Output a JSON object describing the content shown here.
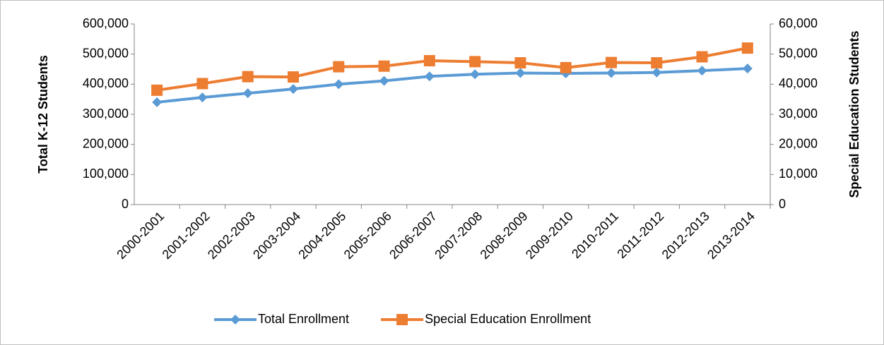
{
  "chart_data": {
    "type": "line",
    "y_label": "Total K-12 Students",
    "y2_label": "Special Education Students",
    "categories": [
      "2000-2001",
      "2001-2002",
      "2002-2003",
      "2003-2004",
      "2004-2005",
      "2005-2006",
      "2006-2007",
      "2007-2008",
      "2008-2009",
      "2009-2010",
      "2010-2011",
      "2011-2012",
      "2012-2013",
      "2013-2014"
    ],
    "series": [
      {
        "name": "Total Enrollment",
        "color": "#5b9bd5",
        "marker": "diamond",
        "values": [
          340000,
          356000,
          370000,
          384000,
          400000,
          411000,
          426000,
          433000,
          437000,
          436000,
          437000,
          439000,
          445000,
          452000
        ]
      },
      {
        "name": "Special Education Enrollment",
        "color": "#ed7d31",
        "marker": "square",
        "axis": "y2",
        "values": [
          38000,
          40200,
          42500,
          42400,
          45800,
          46000,
          47800,
          47500,
          47100,
          45500,
          47200,
          47100,
          49100,
          52000
        ]
      }
    ],
    "ylim": [
      0,
      600000
    ],
    "yticks": [
      0,
      {
        "value": 100000,
        "label": "100,000"
      },
      {
        "value": 200000,
        "label": "200,000"
      },
      {
        "value": 300000,
        "label": "300,000"
      },
      {
        "value": 400000,
        "label": "400,000"
      },
      {
        "value": 500000,
        "label": "500,000"
      },
      {
        "value": 600000,
        "label": "600,000"
      }
    ],
    "y2lim": [
      0,
      60000
    ],
    "y2ticks": [
      0,
      {
        "value": 10000,
        "label": "10,000"
      },
      {
        "value": 20000,
        "label": "20,000"
      },
      {
        "value": 30000,
        "label": "30,000"
      },
      {
        "value": 40000,
        "label": "40,000"
      },
      {
        "value": 50000,
        "label": "50,000"
      },
      {
        "value": 60000,
        "label": "60,000"
      }
    ],
    "legend": "bottom"
  }
}
